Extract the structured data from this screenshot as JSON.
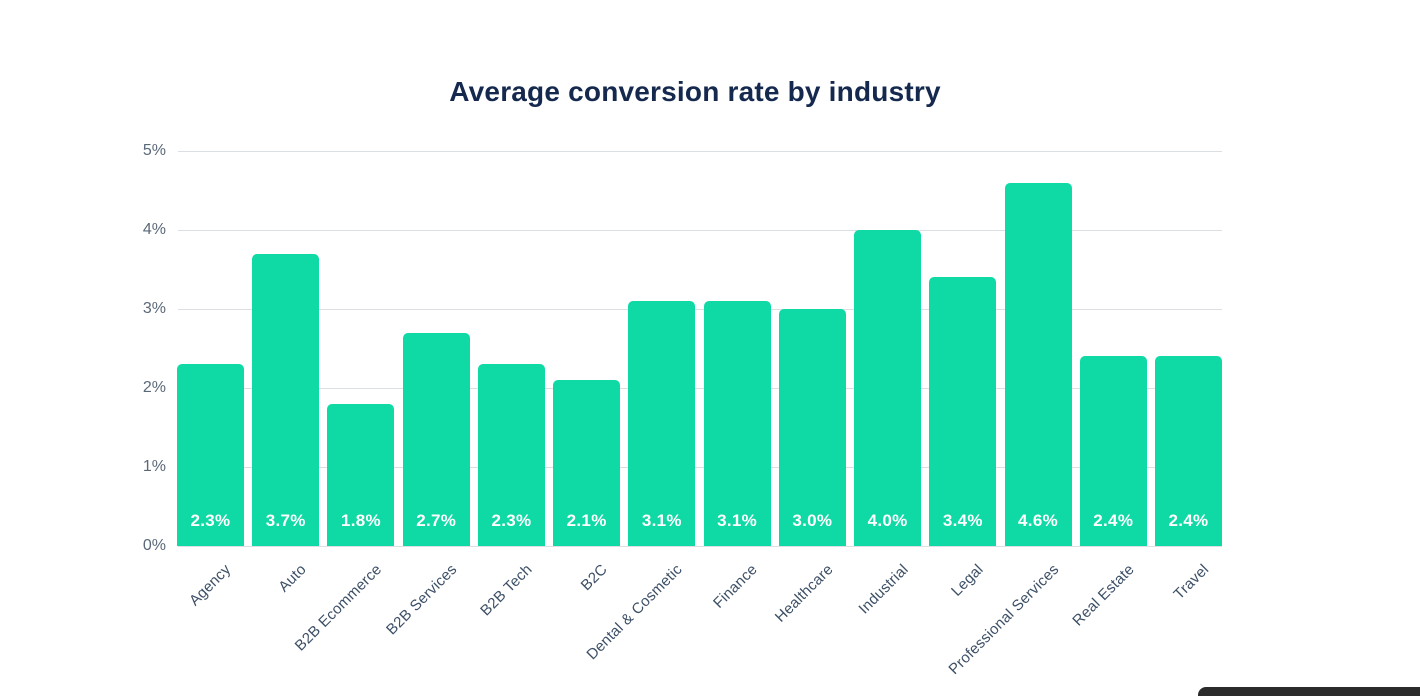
{
  "page": {
    "background": "#FFFFFF"
  },
  "chart_data": {
    "type": "bar",
    "title": "Average conversion rate by industry",
    "categories": [
      "Agency",
      "Auto",
      "B2B Ecommerce",
      "B2B Services",
      "B2B Tech",
      "B2C",
      "Dental & Cosmetic",
      "Finance",
      "Healthcare",
      "Industrial",
      "Legal",
      "Professional Services",
      "Real Estate",
      "Travel"
    ],
    "values": [
      2.3,
      3.7,
      1.8,
      2.7,
      2.3,
      2.1,
      3.1,
      3.1,
      3.0,
      4.0,
      3.4,
      4.6,
      2.4,
      2.4
    ],
    "bar_labels": [
      "2.3%",
      "3.7%",
      "1.8%",
      "2.7%",
      "2.3%",
      "2.1%",
      "3.1%",
      "3.1%",
      "3.0%",
      "4.0%",
      "3.4%",
      "4.6%",
      "2.4%",
      "2.4%"
    ],
    "xlabel": "",
    "ylabel": "",
    "y_ticks": [
      {
        "label": "0%",
        "value": 0
      },
      {
        "label": "1%",
        "value": 1
      },
      {
        "label": "2%",
        "value": 2
      },
      {
        "label": "3%",
        "value": 3
      },
      {
        "label": "4%",
        "value": 4
      },
      {
        "label": "5%",
        "value": 5
      }
    ],
    "ylim": [
      0,
      5
    ],
    "grid": "horizontal",
    "legend": "none",
    "bar_label_position": "inside-bottom",
    "x_tick_rotation_deg": -45,
    "colors": {
      "bar": "#0FD9A5",
      "grid": "#DBDFE4",
      "title_text": "#15294E",
      "y_tick_text": "#5A6878",
      "x_tick_text": "#3C4F66",
      "bar_label_text": "#FFFFFF",
      "background": "#FFFFFF",
      "corner_strip": "#2B2B2B"
    }
  }
}
